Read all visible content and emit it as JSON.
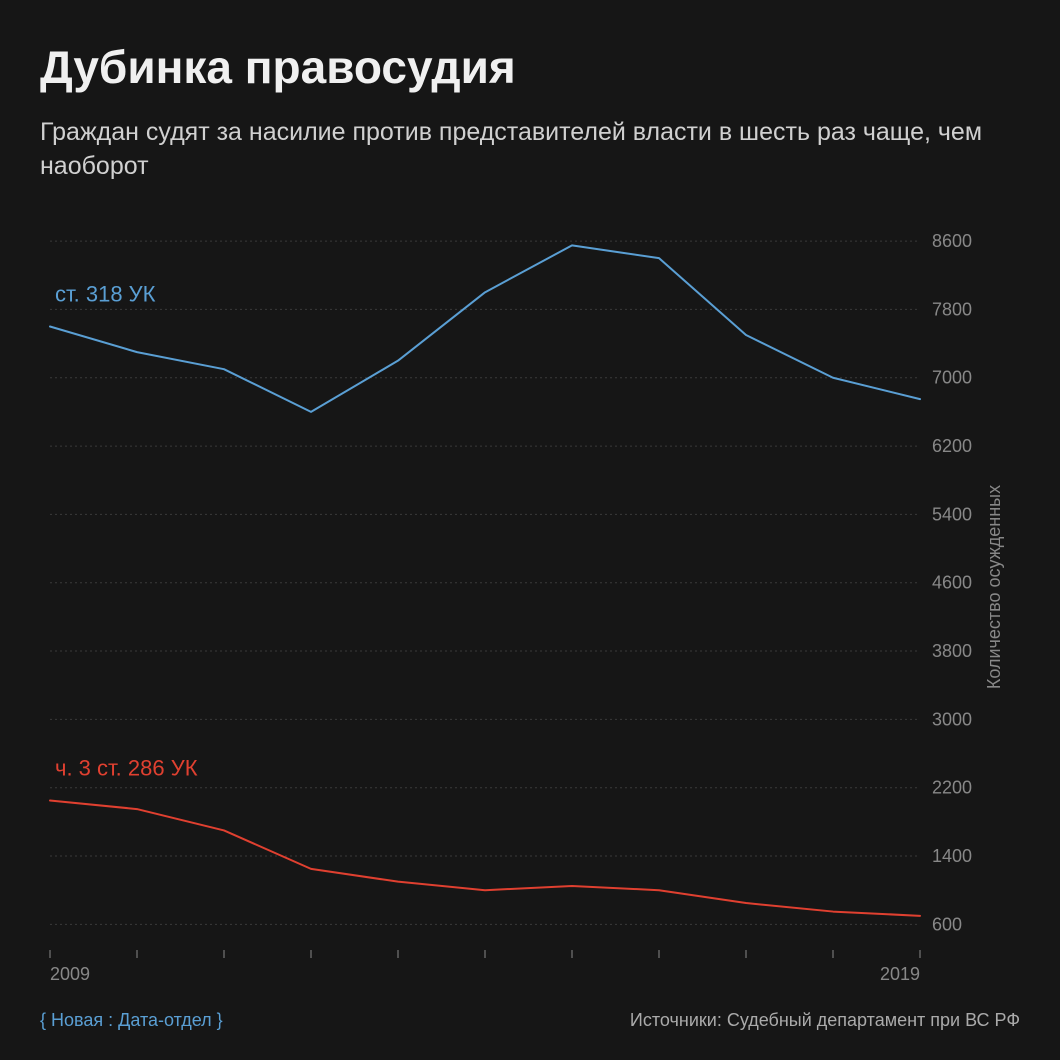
{
  "title": "Дубинка правосудия",
  "subtitle": "Граждан судят за насилие против представителей власти в шесть раз чаще, чем наоборот",
  "chart": {
    "type": "line",
    "background_color": "#161616",
    "grid_color": "#3a3a3a",
    "tick_color": "#888888",
    "label_color": "#888888",
    "series": [
      {
        "label": "ст. 318 УК",
        "color": "#5a9fd4",
        "line_width": 2,
        "values": [
          7600,
          7300,
          7100,
          6600,
          7200,
          8000,
          8550,
          8400,
          7500,
          7000,
          6750
        ]
      },
      {
        "label": "ч. 3 ст. 286 УК",
        "color": "#e04030",
        "line_width": 2,
        "values": [
          2050,
          1950,
          1700,
          1250,
          1100,
          1000,
          1050,
          1000,
          850,
          750,
          700
        ]
      }
    ],
    "x": {
      "values": [
        2009,
        2010,
        2011,
        2012,
        2013,
        2014,
        2015,
        2016,
        2017,
        2018,
        2019
      ],
      "tick_labels": [
        "2009",
        "2019"
      ]
    },
    "y": {
      "min": 300,
      "max": 8800,
      "ticks": [
        600,
        1400,
        2200,
        3000,
        3800,
        4600,
        5400,
        6200,
        7000,
        7800,
        8600
      ],
      "title": "Количество осужденных",
      "label_fontsize": 18
    },
    "series_label_fontsize": 22
  },
  "credit": "{ Новая : Дата-отдел }",
  "source": "Источники: Судебный департамент при ВС РФ"
}
